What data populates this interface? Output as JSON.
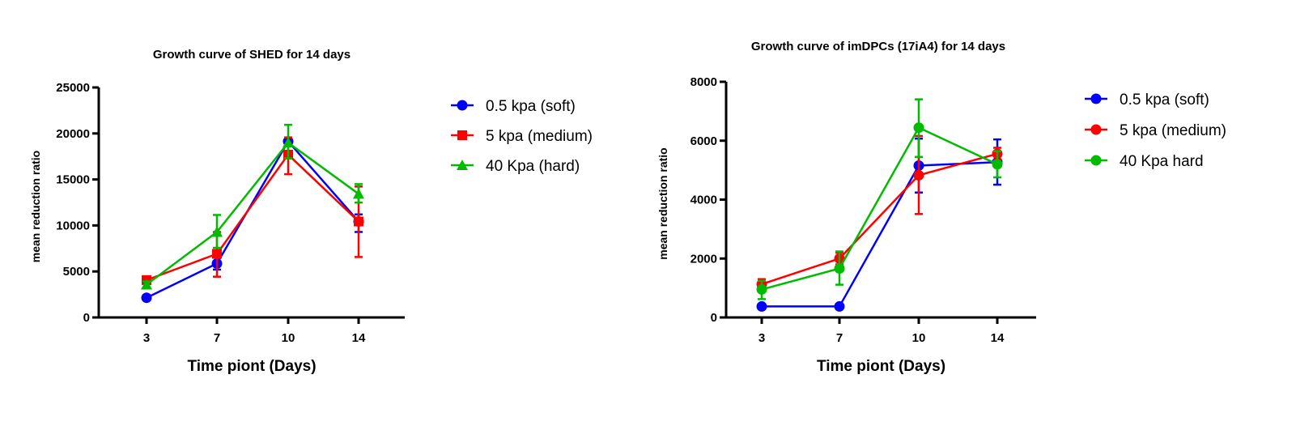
{
  "chart_data": [
    {
      "type": "line",
      "title": "Growth curve of SHED for 14 days",
      "xlabel": "Time piont (Days)",
      "ylabel": "mean reduction ratio",
      "categories": [
        "3",
        "7",
        "10",
        "14"
      ],
      "ylim": [
        0,
        25000
      ],
      "yticks": [
        "0",
        "5000",
        "10000",
        "15000",
        "20000",
        "25000"
      ],
      "legend_position": "right",
      "grid": false,
      "series": [
        {
          "name": "0.5 kpa (soft)",
          "color": "#0000ff",
          "marker": "circle",
          "values": [
            2140,
            5860,
            19140,
            10430
          ],
          "err_low": [
            2140,
            5200,
            18900,
            9290
          ],
          "err_high": [
            2140,
            5860,
            19400,
            11200
          ]
        },
        {
          "name": "5 kpa (medium)",
          "color": "#ff0000",
          "marker": "square",
          "values": [
            4060,
            6910,
            17700,
            10430
          ],
          "err_low": [
            3800,
            4430,
            15570,
            6570
          ],
          "err_high": [
            4300,
            9290,
            19570,
            14230
          ]
        },
        {
          "name": "40 Kpa (hard)",
          "color": "#00bb00",
          "marker": "triangle",
          "values": [
            3570,
            9290,
            19000,
            13430
          ],
          "err_low": [
            3200,
            7570,
            17290,
            12490
          ],
          "err_high": [
            3900,
            11140,
            20940,
            14490
          ]
        }
      ]
    },
    {
      "type": "line",
      "title": "Growth curve of imDPCs (17iA4) for 14 days",
      "xlabel": "Time piont (Days)",
      "ylabel": "mean reduction ratio",
      "categories": [
        "3",
        "7",
        "10",
        "14"
      ],
      "ylim": [
        0,
        8000
      ],
      "yticks": [
        "0",
        "2000",
        "4000",
        "6000",
        "8000"
      ],
      "legend_position": "right",
      "grid": false,
      "series": [
        {
          "name": "0.5 kpa (soft)",
          "color": "#0000ff",
          "marker": "circle",
          "values": [
            373,
            373,
            5156,
            5271
          ],
          "err_low": [
            373,
            373,
            4240,
            4507
          ],
          "err_high": [
            373,
            373,
            6071,
            6044
          ]
        },
        {
          "name": "5 kpa (medium)",
          "color": "#ff0000",
          "marker": "circle",
          "values": [
            1129,
            2000,
            4827,
            5556
          ],
          "err_low": [
            950,
            1800,
            3511,
            5350
          ],
          "err_high": [
            1300,
            2200,
            6160,
            5760
          ]
        },
        {
          "name": "40 Kpa hard",
          "color": "#00bb00",
          "marker": "circle",
          "values": [
            951,
            1662,
            6444,
            5200
          ],
          "err_low": [
            622,
            1111,
            5449,
            4756
          ],
          "err_high": [
            1244,
            2240,
            7404,
            5644
          ]
        }
      ]
    }
  ]
}
